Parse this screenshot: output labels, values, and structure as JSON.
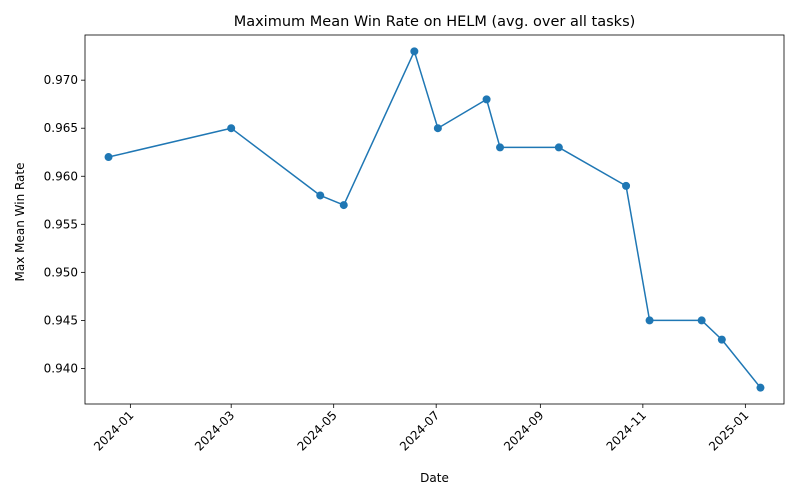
{
  "chart_data": {
    "type": "line",
    "title": "Maximum Mean Win Rate on HELM (avg. over all tasks)",
    "xlabel": "Date",
    "ylabel": "Max Mean Win Rate",
    "series_color": "#1f77b4",
    "x": [
      "2023-12-19",
      "2024-03-01",
      "2024-04-23",
      "2024-05-07",
      "2024-06-18",
      "2024-07-02",
      "2024-07-31",
      "2024-08-08",
      "2024-09-12",
      "2024-10-22",
      "2024-11-05",
      "2024-12-06",
      "2024-12-18",
      "2025-01-10"
    ],
    "y": [
      0.962,
      0.965,
      0.958,
      0.957,
      0.973,
      0.965,
      0.968,
      0.963,
      0.963,
      0.959,
      0.945,
      0.945,
      0.943,
      0.938
    ],
    "x_ticks": [
      "2024-01",
      "2024-03",
      "2024-05",
      "2024-07",
      "2024-09",
      "2024-11",
      "2025-01"
    ],
    "y_ticks": [
      "0.940",
      "0.945",
      "0.950",
      "0.955",
      "0.960",
      "0.965",
      "0.970"
    ],
    "xlim": [
      "2023-12-05",
      "2025-01-24"
    ],
    "ylim": [
      0.9363,
      0.9747
    ],
    "grid": false,
    "legend": "none"
  }
}
